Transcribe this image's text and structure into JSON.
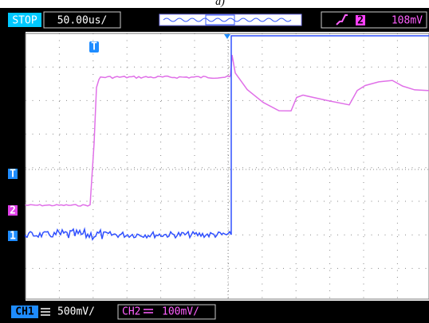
{
  "header": {
    "caption": "a)",
    "status": "STOP",
    "timebase": "50.00us/",
    "trigger_channel": "2",
    "trigger_level": "108mV"
  },
  "markers": {
    "trigger": "T",
    "trigger_level": "T",
    "ch2": "2",
    "ch1": "1"
  },
  "footer": {
    "ch1_label": "CH1",
    "ch1_scale": "500mV/",
    "ch2_label": "CH2",
    "ch2_scale": "100mV/"
  }
}
